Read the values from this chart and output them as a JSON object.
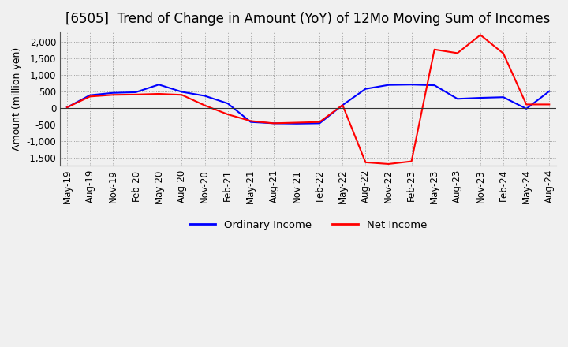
{
  "title": "[6505]  Trend of Change in Amount (YoY) of 12Mo Moving Sum of Incomes",
  "ylabel": "Amount (million yen)",
  "ylim": [
    -1750,
    2300
  ],
  "yticks": [
    -1500,
    -1000,
    -500,
    0,
    500,
    1000,
    1500,
    2000
  ],
  "legend_labels": [
    "Ordinary Income",
    "Net Income"
  ],
  "legend_colors": [
    "#0000ff",
    "#ff0000"
  ],
  "x_labels": [
    "May-19",
    "Aug-19",
    "Nov-19",
    "Feb-20",
    "May-20",
    "Aug-20",
    "Nov-20",
    "Feb-21",
    "May-21",
    "Aug-21",
    "Nov-21",
    "Feb-22",
    "May-22",
    "Aug-22",
    "Nov-22",
    "Feb-23",
    "May-23",
    "Aug-23",
    "Nov-23",
    "Feb-24",
    "May-24",
    "Aug-24"
  ],
  "ordinary_income": [
    10,
    380,
    450,
    470,
    700,
    480,
    360,
    130,
    -430,
    -470,
    -480,
    -470,
    80,
    570,
    690,
    700,
    680,
    270,
    300,
    320,
    -30,
    500
  ],
  "net_income": [
    10,
    340,
    390,
    400,
    420,
    390,
    70,
    -200,
    -400,
    -470,
    -450,
    -430,
    80,
    -1650,
    -1700,
    -1620,
    1760,
    1650,
    2200,
    1640,
    100,
    100
  ],
  "background_color": "#f0f0f0",
  "plot_background": "#f0f0f0",
  "grid_color": "#888888",
  "title_fontsize": 12,
  "axis_fontsize": 9,
  "tick_fontsize": 8.5
}
